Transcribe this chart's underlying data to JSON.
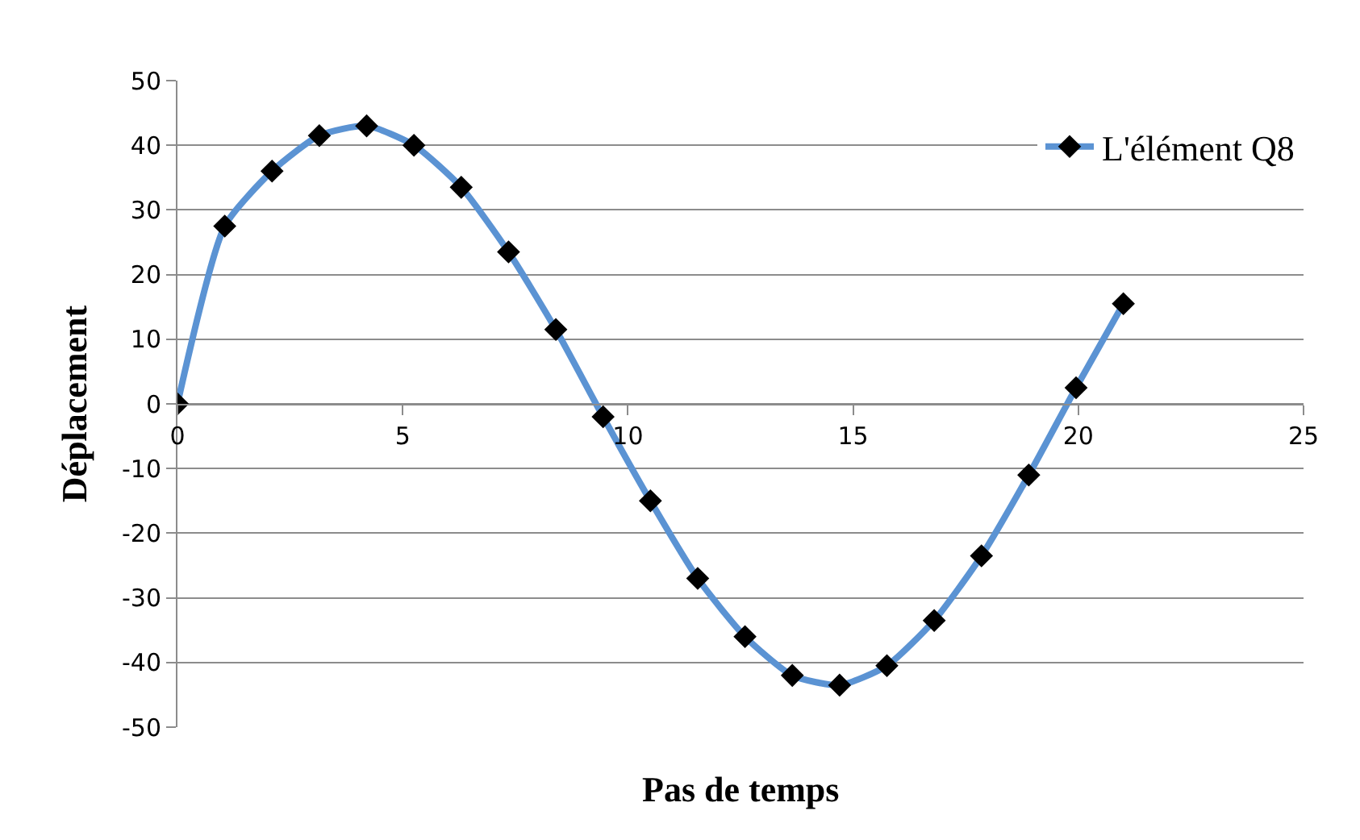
{
  "chart_data": {
    "type": "line",
    "xlabel": "Pas de temps",
    "ylabel": "Déplacement",
    "x": [
      0,
      1.05,
      2.1,
      3.15,
      4.2,
      5.25,
      6.3,
      7.35,
      8.4,
      9.45,
      10.5,
      11.55,
      12.6,
      13.65,
      14.7,
      15.75,
      16.8,
      17.85,
      18.9,
      19.95,
      21
    ],
    "series": [
      {
        "name": "L'élément Q8",
        "color": "#5b93d3",
        "values": [
          0,
          27.5,
          36,
          41.5,
          43,
          40,
          33.5,
          23.5,
          11.5,
          -2,
          -15,
          -27,
          -36,
          -42,
          -43.5,
          -40.5,
          -33.5,
          -23.5,
          -11,
          2.5,
          15.5
        ]
      }
    ],
    "xlim": [
      0,
      25
    ],
    "xticks": [
      0,
      5,
      10,
      15,
      20,
      25
    ],
    "ylim": [
      -50,
      50
    ],
    "yticks": [
      -50,
      -40,
      -30,
      -20,
      -10,
      0,
      10,
      20,
      30,
      40,
      50
    ],
    "grid": "y",
    "legend": "top right",
    "marker": "diamond",
    "line_style": "solid"
  }
}
